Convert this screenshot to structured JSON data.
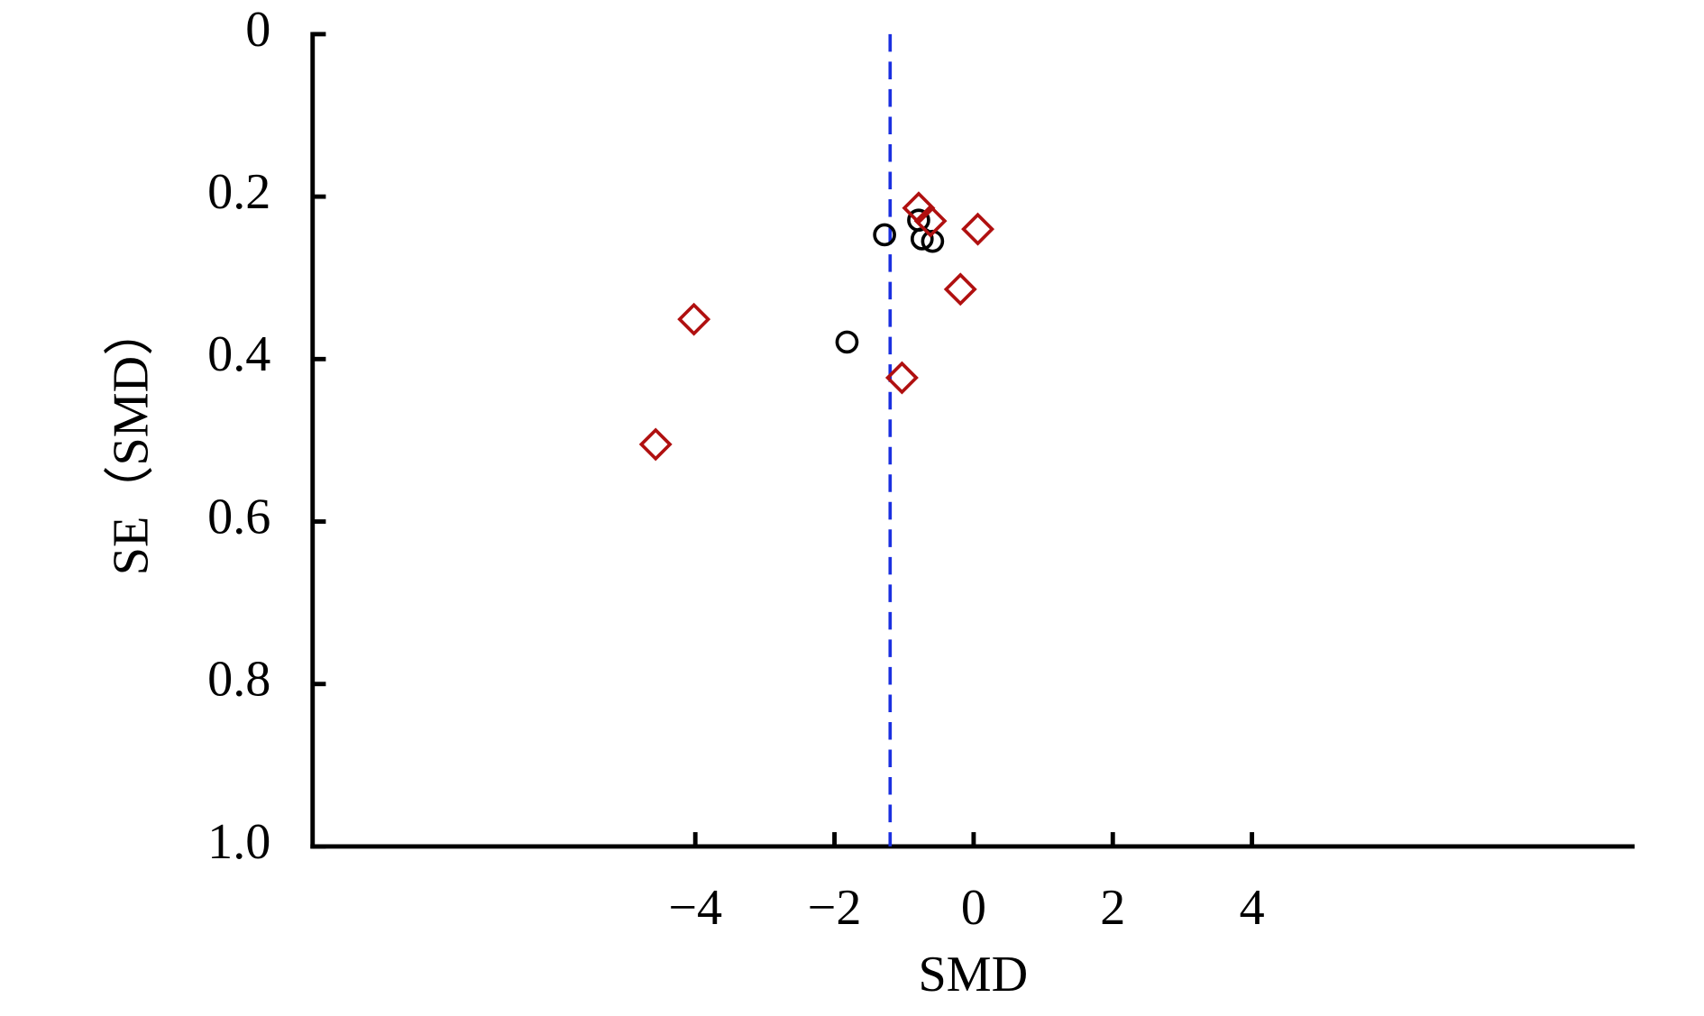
{
  "chart_data": {
    "type": "scatter",
    "x_label": "SMD",
    "y_label": "SE（SMD）",
    "xlim": [
      -9.5,
      9.5
    ],
    "xticks": [
      {
        "value": -4,
        "label": "−4"
      },
      {
        "value": -2,
        "label": "−2"
      },
      0,
      2,
      4
    ],
    "ylim": [
      0,
      1
    ],
    "y_inverted": true,
    "yticks": [
      0,
      0.2,
      0.4,
      0.6,
      0.8,
      {
        "value": 1,
        "label": "1.0"
      }
    ],
    "reference_line": {
      "x": -1.2,
      "color": "#1a2fe0",
      "dashed": true
    },
    "series": [
      {
        "marker": "circle",
        "color": "#000000",
        "x": [
          -1.28,
          -0.79,
          -0.74,
          -0.59,
          -1.82
        ],
        "values": [
          0.247,
          0.229,
          0.252,
          0.255,
          0.379
        ]
      },
      {
        "marker": "diamond",
        "color": "#b01010",
        "x": [
          -0.79,
          -0.62,
          0.06,
          -0.19,
          -1.03,
          -4.02,
          -4.57
        ],
        "values": [
          0.214,
          0.23,
          0.24,
          0.314,
          0.423,
          0.351,
          0.505
        ]
      }
    ]
  }
}
